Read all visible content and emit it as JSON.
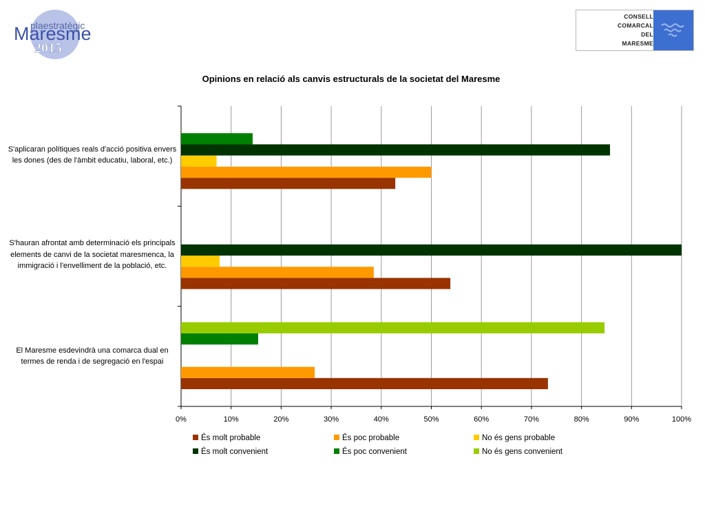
{
  "header": {
    "left_logo": {
      "line1": "plaestratègic",
      "line2": "Maresme",
      "line3": "2015"
    },
    "right_logo": {
      "lines": [
        "CONSELL",
        "COMARCAL",
        "DEL",
        "MARESME"
      ],
      "brand_color": "#3d6fd1"
    }
  },
  "chart_data": {
    "type": "bar",
    "orientation": "horizontal",
    "title": "Opinions en relació als canvis estructurals de la societat del Maresme",
    "categories": [
      "S'aplicaran polítiques reals d'acció positiva envers les dones (des de l'àmbit educatiu, laboral, etc.)",
      "S'hauran afrontat amb determinació els principals elements de canvi de la societat maresmenca, la immigració i l'envelliment de la població, etc.",
      "El Maresme esdevindrà una comarca dual en termes de renda i de segregació en l'espai"
    ],
    "series": [
      {
        "name": "És molt probable",
        "color": "#993300",
        "values": [
          42.8,
          53.8,
          73.3
        ]
      },
      {
        "name": "És poc probable",
        "color": "#ff9900",
        "values": [
          50.0,
          38.5,
          26.7
        ]
      },
      {
        "name": "No és gens probable",
        "color": "#ffcc00",
        "values": [
          7.1,
          7.7,
          0
        ]
      },
      {
        "name": "És molt convenient",
        "color": "#003300",
        "values": [
          85.7,
          100.0,
          0
        ]
      },
      {
        "name": "És poc convenient",
        "color": "#008000",
        "values": [
          14.3,
          0,
          15.4
        ]
      },
      {
        "name": "No és gens convenient",
        "color": "#99cc00",
        "values": [
          0,
          0,
          84.6
        ]
      }
    ],
    "xlim": [
      0,
      100
    ],
    "xticks": [
      "0%",
      "10%",
      "20%",
      "30%",
      "40%",
      "50%",
      "60%",
      "70%",
      "80%",
      "90%",
      "100%"
    ],
    "grid": true,
    "legend_position": "bottom"
  }
}
